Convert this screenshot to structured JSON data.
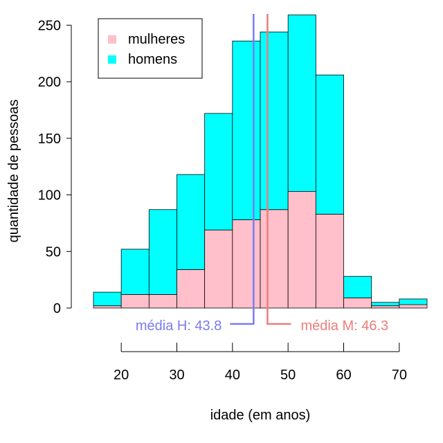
{
  "chart_data": {
    "type": "bar",
    "subtype": "stacked-histogram",
    "xlabel": "idade (em anos)",
    "ylabel": "quantidade de pessoas",
    "xlim": [
      15,
      75
    ],
    "ylim": [
      0,
      260
    ],
    "x_ticks": [
      20,
      30,
      40,
      50,
      60,
      70
    ],
    "y_ticks": [
      0,
      50,
      100,
      150,
      200,
      250
    ],
    "bin_edges": [
      15,
      20,
      25,
      30,
      35,
      40,
      45,
      50,
      55,
      60,
      65,
      70,
      75
    ],
    "series": [
      {
        "name": "mulheres",
        "color": "#ffc0cb",
        "values": [
          2,
          12,
          12,
          34,
          69,
          78,
          87,
          103,
          83,
          9,
          2,
          3
        ]
      },
      {
        "name": "homens",
        "color": "#00ffff",
        "values": [
          12,
          40,
          75,
          84,
          103,
          158,
          157,
          156,
          123,
          19,
          3,
          5
        ]
      }
    ],
    "legend": {
      "position": "top-left",
      "entries": [
        "mulheres",
        "homens"
      ]
    },
    "annotations": [
      {
        "label": "média H: 43.8",
        "x": 43.8,
        "color": "#7b7bf0"
      },
      {
        "label": "média M: 46.3",
        "x": 46.3,
        "color": "#f07b7b"
      }
    ]
  }
}
